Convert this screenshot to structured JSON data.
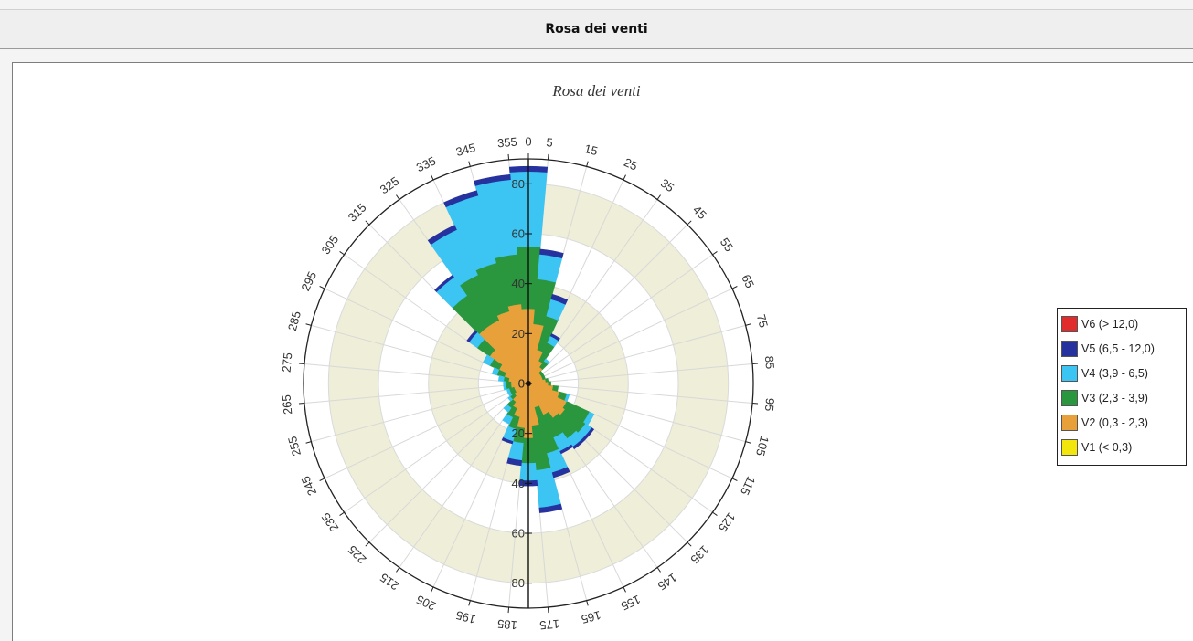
{
  "window": {
    "title": "Rosa dei venti"
  },
  "chart_data": {
    "type": "polar-stacked-bar",
    "title": "Rosa dei venti",
    "rlim": [
      0,
      90
    ],
    "radial_ticks": [
      0,
      20,
      40,
      60,
      80
    ],
    "direction_labels": [
      "0",
      "5",
      "15",
      "25",
      "35",
      "45",
      "55",
      "65",
      "75",
      "85",
      "95",
      "105",
      "115",
      "125",
      "135",
      "145",
      "155",
      "165",
      "175",
      "185",
      "195",
      "205",
      "215",
      "225",
      "235",
      "245",
      "255",
      "265",
      "275",
      "285",
      "295",
      "305",
      "315",
      "325",
      "335",
      "345",
      "355"
    ],
    "sector_directions": [
      0,
      10,
      20,
      30,
      40,
      50,
      60,
      70,
      80,
      90,
      100,
      110,
      120,
      130,
      140,
      150,
      160,
      170,
      180,
      190,
      200,
      210,
      220,
      230,
      240,
      250,
      260,
      270,
      280,
      290,
      300,
      310,
      320,
      330,
      340,
      350
    ],
    "series": [
      {
        "name": "V1 (< 0,3)",
        "color": "#f2e60c",
        "values": [
          0,
          0,
          0,
          0,
          0,
          0,
          0,
          0,
          0,
          0,
          0,
          0,
          0,
          0,
          0,
          0,
          0,
          0,
          0,
          0,
          0,
          0,
          0,
          0,
          0,
          0,
          0,
          0,
          0,
          0,
          0,
          0,
          0,
          0,
          0,
          0
        ]
      },
      {
        "name": "V2 (0,3 - 2,3)",
        "color": "#e8a13a",
        "values": [
          30,
          24,
          14,
          10,
          8,
          6,
          6,
          6,
          7,
          8,
          10,
          13,
          17,
          18,
          17,
          14,
          10,
          17,
          22,
          18,
          14,
          11,
          9,
          7,
          6,
          6,
          7,
          7,
          8,
          10,
          13,
          19,
          28,
          28,
          30,
          32
        ]
      },
      {
        "name": "V3 (2,3 - 3,9)",
        "color": "#2a963e",
        "values": [
          25,
          18,
          14,
          8,
          3,
          1,
          1,
          1,
          1,
          1,
          2,
          3,
          10,
          10,
          10,
          10,
          19,
          18,
          10,
          6,
          5,
          4,
          3,
          2,
          2,
          2,
          2,
          2,
          2,
          3,
          4,
          6,
          15,
          20,
          20,
          20
        ]
      },
      {
        "name": "V4 (3,9 - 6,5)",
        "color": "#3cc4f2",
        "values": [
          30,
          10,
          7,
          3,
          1,
          0,
          0,
          0,
          0,
          0,
          0,
          1,
          2,
          3,
          4,
          6,
          8,
          15,
          7,
          7,
          5,
          3,
          2,
          1,
          1,
          1,
          1,
          1,
          2,
          2,
          3,
          4,
          9,
          20,
          28,
          30
        ]
      },
      {
        "name": "V5 (6,5 - 12,0)",
        "color": "#26329e",
        "values": [
          2,
          2,
          2,
          1,
          0,
          0,
          0,
          0,
          0,
          0,
          0,
          0,
          0,
          1,
          1,
          1,
          2,
          2,
          2,
          2,
          1,
          0,
          0,
          0,
          0,
          0,
          0,
          0,
          0,
          0,
          0,
          1,
          1,
          2,
          2,
          2
        ]
      },
      {
        "name": "V6 (> 12,0)",
        "color": "#e02c2c",
        "values": [
          0,
          0,
          0,
          0,
          0,
          0,
          0,
          0,
          0,
          0,
          0,
          0,
          0,
          0,
          0,
          0,
          0,
          0,
          0,
          0,
          0,
          0,
          0,
          0,
          0,
          0,
          0,
          0,
          0,
          0,
          0,
          0,
          0,
          0,
          0,
          0
        ]
      }
    ],
    "legend": [
      {
        "label": "V6 (> 12,0)",
        "color": "#e02c2c"
      },
      {
        "label": "V5 (6,5 - 12,0)",
        "color": "#26329e"
      },
      {
        "label": "V4 (3,9 - 6,5)",
        "color": "#3cc4f2"
      },
      {
        "label": "V3 (2,3 - 3,9)",
        "color": "#2a963e"
      },
      {
        "label": "V2 (0,3 - 2,3)",
        "color": "#e8a13a"
      },
      {
        "label": "V1 (< 0,3)",
        "color": "#f2e60c"
      }
    ],
    "legend_position": "right",
    "band_color": "#efeed8",
    "grid": true
  }
}
